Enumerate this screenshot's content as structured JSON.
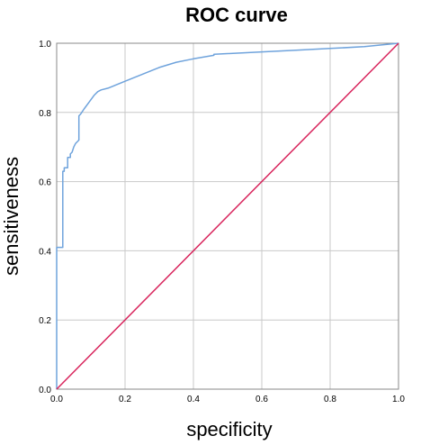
{
  "chart_data": {
    "type": "line",
    "title": "ROC curve",
    "xlabel": "specificity",
    "ylabel": "sensitiveness",
    "xlim": [
      0,
      1
    ],
    "ylim": [
      0,
      1
    ],
    "x_ticks": [
      "0.0",
      "0.2",
      "0.4",
      "0.6",
      "0.8",
      "1.0"
    ],
    "y_ticks": [
      "0.0",
      "0.2",
      "0.4",
      "0.6",
      "0.8",
      "1.0"
    ],
    "grid": true,
    "legend": "none",
    "series": [
      {
        "color": "#6fa3dc",
        "x": [
          0.0,
          0.0,
          0.0,
          0.002,
          0.018,
          0.018,
          0.022,
          0.022,
          0.032,
          0.032,
          0.04,
          0.04,
          0.045,
          0.05,
          0.055,
          0.065,
          0.065,
          0.07,
          0.08,
          0.095,
          0.11,
          0.12,
          0.13,
          0.15,
          0.2,
          0.25,
          0.3,
          0.35,
          0.4,
          0.46,
          0.46,
          0.5,
          0.6,
          0.7,
          0.8,
          0.9,
          0.95,
          1.0
        ],
        "y": [
          0.0,
          0.08,
          0.41,
          0.41,
          0.41,
          0.63,
          0.63,
          0.64,
          0.64,
          0.67,
          0.67,
          0.68,
          0.685,
          0.7,
          0.71,
          0.72,
          0.79,
          0.795,
          0.81,
          0.83,
          0.85,
          0.86,
          0.865,
          0.87,
          0.89,
          0.91,
          0.93,
          0.945,
          0.955,
          0.965,
          0.968,
          0.97,
          0.975,
          0.98,
          0.985,
          0.99,
          0.995,
          1.0
        ]
      },
      {
        "color": "#d8245c",
        "x": [
          0,
          1
        ],
        "y": [
          0,
          1
        ]
      }
    ]
  }
}
